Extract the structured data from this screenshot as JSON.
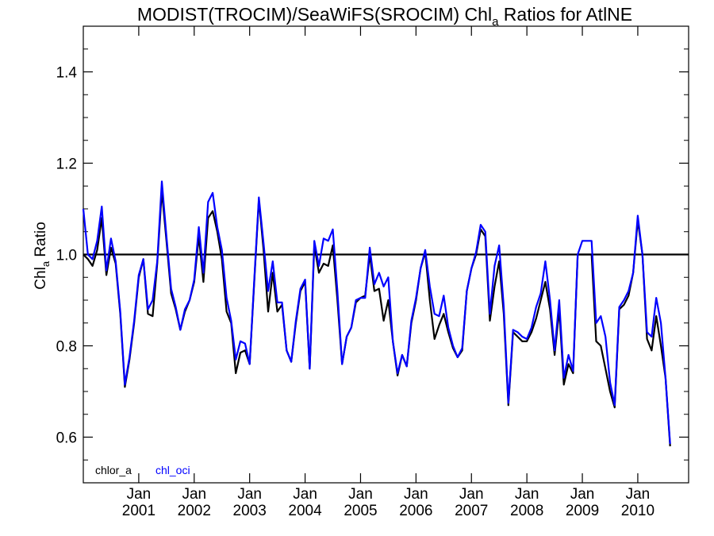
{
  "chart_data": {
    "type": "line",
    "title": "MODIST(TROCIM)/SeaWiFS(SROCIM)  Chl_a Ratios for AtlNE",
    "title_parts": {
      "prefix": "MODIST(TROCIM)/SeaWiFS(SROCIM)  Chl",
      "subscript": "a",
      "suffix": " Ratios for AtlNE"
    },
    "ylabel": "Chl_a Ratio",
    "ylabel_parts": {
      "prefix": "Chl",
      "subscript": "a",
      "suffix": " Ratio"
    },
    "xlabel": "",
    "ylim": [
      0.5,
      1.5
    ],
    "xlim": [
      "2000-01",
      "2010-12"
    ],
    "y_ticks": [
      {
        "value": 0.6,
        "label": "0.6"
      },
      {
        "value": 0.8,
        "label": "0.8"
      },
      {
        "value": 1.0,
        "label": "1.0"
      },
      {
        "value": 1.2,
        "label": "1.2"
      },
      {
        "value": 1.4,
        "label": "1.4"
      }
    ],
    "x_ticks": [
      {
        "x": "2001-01",
        "label1": "Jan",
        "label2": "2001"
      },
      {
        "x": "2002-01",
        "label1": "Jan",
        "label2": "2002"
      },
      {
        "x": "2003-01",
        "label1": "Jan",
        "label2": "2003"
      },
      {
        "x": "2004-01",
        "label1": "Jan",
        "label2": "2004"
      },
      {
        "x": "2005-01",
        "label1": "Jan",
        "label2": "2005"
      },
      {
        "x": "2006-01",
        "label1": "Jan",
        "label2": "2006"
      },
      {
        "x": "2007-01",
        "label1": "Jan",
        "label2": "2007"
      },
      {
        "x": "2008-01",
        "label1": "Jan",
        "label2": "2008"
      },
      {
        "x": "2009-01",
        "label1": "Jan",
        "label2": "2009"
      },
      {
        "x": "2010-01",
        "label1": "Jan",
        "label2": "2010"
      }
    ],
    "reference_line": {
      "y": 1.0,
      "color": "#000000"
    },
    "legend_placement": "bottom-left",
    "grid": false,
    "series": [
      {
        "name": "chlor_a",
        "color": "#000000",
        "points": [
          [
            "2000-01",
            1.0
          ],
          [
            "2000-02",
            0.99
          ],
          [
            "2000-03",
            0.975
          ],
          [
            "2000-04",
            1.01
          ],
          [
            "2000-05",
            1.08
          ],
          [
            "2000-06",
            0.955
          ],
          [
            "2000-07",
            1.015
          ],
          [
            "2000-08",
            0.98
          ],
          [
            "2000-09",
            0.87
          ],
          [
            "2000-10",
            0.71
          ],
          [
            "2000-11",
            0.77
          ],
          [
            "2000-12",
            0.85
          ],
          [
            "2001-01",
            0.95
          ],
          [
            "2001-02",
            0.99
          ],
          [
            "2001-03",
            0.87
          ],
          [
            "2001-04",
            0.865
          ],
          [
            "2001-05",
            0.98
          ],
          [
            "2001-06",
            1.14
          ],
          [
            "2001-07",
            1.03
          ],
          [
            "2001-08",
            0.915
          ],
          [
            "2001-09",
            0.88
          ],
          [
            "2001-10",
            0.835
          ],
          [
            "2001-11",
            0.875
          ],
          [
            "2001-12",
            0.9
          ],
          [
            "2002-01",
            0.94
          ],
          [
            "2002-02",
            1.04
          ],
          [
            "2002-03",
            0.94
          ],
          [
            "2002-04",
            1.08
          ],
          [
            "2002-05",
            1.095
          ],
          [
            "2002-06",
            1.05
          ],
          [
            "2002-07",
            0.99
          ],
          [
            "2002-08",
            0.875
          ],
          [
            "2002-09",
            0.85
          ],
          [
            "2002-10",
            0.74
          ],
          [
            "2002-11",
            0.785
          ],
          [
            "2002-12",
            0.79
          ],
          [
            "2003-01",
            0.76
          ],
          [
            "2003-02",
            0.94
          ],
          [
            "2003-03",
            1.12
          ],
          [
            "2003-04",
            1.01
          ],
          [
            "2003-05",
            0.875
          ],
          [
            "2003-06",
            0.96
          ],
          [
            "2003-07",
            0.875
          ],
          [
            "2003-08",
            0.89
          ],
          [
            "2003-09",
            0.79
          ],
          [
            "2003-10",
            0.765
          ],
          [
            "2003-11",
            0.85
          ],
          [
            "2003-12",
            0.92
          ],
          [
            "2004-01",
            0.94
          ],
          [
            "2004-02",
            0.75
          ],
          [
            "2004-03",
            1.02
          ],
          [
            "2004-04",
            0.96
          ],
          [
            "2004-05",
            0.98
          ],
          [
            "2004-06",
            0.975
          ],
          [
            "2004-07",
            1.02
          ],
          [
            "2004-08",
            0.9
          ],
          [
            "2004-09",
            0.76
          ],
          [
            "2004-10",
            0.82
          ],
          [
            "2004-11",
            0.84
          ],
          [
            "2004-12",
            0.895
          ],
          [
            "2005-01",
            0.905
          ],
          [
            "2005-02",
            0.91
          ],
          [
            "2005-03",
            1.0
          ],
          [
            "2005-04",
            0.92
          ],
          [
            "2005-05",
            0.925
          ],
          [
            "2005-06",
            0.855
          ],
          [
            "2005-07",
            0.9
          ],
          [
            "2005-08",
            0.81
          ],
          [
            "2005-09",
            0.735
          ],
          [
            "2005-10",
            0.78
          ],
          [
            "2005-11",
            0.755
          ],
          [
            "2005-12",
            0.85
          ],
          [
            "2006-01",
            0.9
          ],
          [
            "2006-02",
            0.97
          ],
          [
            "2006-03",
            1.005
          ],
          [
            "2006-04",
            0.9
          ],
          [
            "2006-05",
            0.815
          ],
          [
            "2006-06",
            0.845
          ],
          [
            "2006-07",
            0.87
          ],
          [
            "2006-08",
            0.83
          ],
          [
            "2006-09",
            0.795
          ],
          [
            "2006-10",
            0.775
          ],
          [
            "2006-11",
            0.79
          ],
          [
            "2006-12",
            0.92
          ],
          [
            "2007-01",
            0.97
          ],
          [
            "2007-02",
            1.0
          ],
          [
            "2007-03",
            1.055
          ],
          [
            "2007-04",
            1.04
          ],
          [
            "2007-05",
            0.855
          ],
          [
            "2007-06",
            0.93
          ],
          [
            "2007-07",
            0.985
          ],
          [
            "2007-08",
            0.87
          ],
          [
            "2007-09",
            0.67
          ],
          [
            "2007-10",
            0.83
          ],
          [
            "2007-11",
            0.82
          ],
          [
            "2007-12",
            0.81
          ],
          [
            "2008-01",
            0.81
          ],
          [
            "2008-02",
            0.83
          ],
          [
            "2008-03",
            0.86
          ],
          [
            "2008-04",
            0.9
          ],
          [
            "2008-05",
            0.94
          ],
          [
            "2008-06",
            0.88
          ],
          [
            "2008-07",
            0.78
          ],
          [
            "2008-08",
            0.88
          ],
          [
            "2008-09",
            0.715
          ],
          [
            "2008-10",
            0.76
          ],
          [
            "2008-11",
            0.74
          ],
          [
            "2008-12",
            1.0
          ],
          [
            "2009-01",
            1.0
          ],
          [
            "2009-02",
            1.0
          ],
          [
            "2009-03",
            1.0
          ],
          [
            "2009-04",
            0.81
          ],
          [
            "2009-05",
            0.8
          ],
          [
            "2009-06",
            0.75
          ],
          [
            "2009-07",
            0.7
          ],
          [
            "2009-08",
            0.665
          ],
          [
            "2009-09",
            0.88
          ],
          [
            "2009-10",
            0.89
          ],
          [
            "2009-11",
            0.91
          ],
          [
            "2009-12",
            0.96
          ],
          [
            "2010-01",
            1.075
          ],
          [
            "2010-02",
            1.0
          ],
          [
            "2010-03",
            0.815
          ],
          [
            "2010-04",
            0.79
          ],
          [
            "2010-05",
            0.865
          ],
          [
            "2010-06",
            0.8
          ],
          [
            "2010-07",
            0.73
          ],
          [
            "2010-08",
            0.58
          ]
        ]
      },
      {
        "name": "chl_oci",
        "color": "#0000ff",
        "points": [
          [
            "2000-01",
            1.1
          ],
          [
            "2000-02",
            1.0
          ],
          [
            "2000-03",
            0.99
          ],
          [
            "2000-04",
            1.03
          ],
          [
            "2000-05",
            1.105
          ],
          [
            "2000-06",
            0.965
          ],
          [
            "2000-07",
            1.035
          ],
          [
            "2000-08",
            0.985
          ],
          [
            "2000-09",
            0.875
          ],
          [
            "2000-10",
            0.715
          ],
          [
            "2000-11",
            0.775
          ],
          [
            "2000-12",
            0.855
          ],
          [
            "2001-01",
            0.955
          ],
          [
            "2001-02",
            0.99
          ],
          [
            "2001-03",
            0.88
          ],
          [
            "2001-04",
            0.9
          ],
          [
            "2001-05",
            0.985
          ],
          [
            "2001-06",
            1.16
          ],
          [
            "2001-07",
            1.04
          ],
          [
            "2001-08",
            0.925
          ],
          [
            "2001-09",
            0.885
          ],
          [
            "2001-10",
            0.835
          ],
          [
            "2001-11",
            0.88
          ],
          [
            "2001-12",
            0.9
          ],
          [
            "2002-01",
            0.945
          ],
          [
            "2002-02",
            1.06
          ],
          [
            "2002-03",
            0.96
          ],
          [
            "2002-04",
            1.115
          ],
          [
            "2002-05",
            1.135
          ],
          [
            "2002-06",
            1.06
          ],
          [
            "2002-07",
            1.01
          ],
          [
            "2002-08",
            0.905
          ],
          [
            "2002-09",
            0.855
          ],
          [
            "2002-10",
            0.77
          ],
          [
            "2002-11",
            0.81
          ],
          [
            "2002-12",
            0.805
          ],
          [
            "2003-01",
            0.76
          ],
          [
            "2003-02",
            0.945
          ],
          [
            "2003-03",
            1.125
          ],
          [
            "2003-04",
            1.025
          ],
          [
            "2003-05",
            0.92
          ],
          [
            "2003-06",
            0.985
          ],
          [
            "2003-07",
            0.895
          ],
          [
            "2003-08",
            0.895
          ],
          [
            "2003-09",
            0.79
          ],
          [
            "2003-10",
            0.765
          ],
          [
            "2003-11",
            0.855
          ],
          [
            "2003-12",
            0.925
          ],
          [
            "2004-01",
            0.945
          ],
          [
            "2004-02",
            0.75
          ],
          [
            "2004-03",
            1.03
          ],
          [
            "2004-04",
            0.975
          ],
          [
            "2004-05",
            1.035
          ],
          [
            "2004-06",
            1.03
          ],
          [
            "2004-07",
            1.055
          ],
          [
            "2004-08",
            0.92
          ],
          [
            "2004-09",
            0.76
          ],
          [
            "2004-10",
            0.82
          ],
          [
            "2004-11",
            0.84
          ],
          [
            "2004-12",
            0.9
          ],
          [
            "2005-01",
            0.905
          ],
          [
            "2005-02",
            0.905
          ],
          [
            "2005-03",
            1.015
          ],
          [
            "2005-04",
            0.935
          ],
          [
            "2005-05",
            0.96
          ],
          [
            "2005-06",
            0.93
          ],
          [
            "2005-07",
            0.95
          ],
          [
            "2005-08",
            0.81
          ],
          [
            "2005-09",
            0.74
          ],
          [
            "2005-10",
            0.78
          ],
          [
            "2005-11",
            0.755
          ],
          [
            "2005-12",
            0.855
          ],
          [
            "2006-01",
            0.905
          ],
          [
            "2006-02",
            0.97
          ],
          [
            "2006-03",
            1.01
          ],
          [
            "2006-04",
            0.93
          ],
          [
            "2006-05",
            0.87
          ],
          [
            "2006-06",
            0.865
          ],
          [
            "2006-07",
            0.91
          ],
          [
            "2006-08",
            0.84
          ],
          [
            "2006-09",
            0.8
          ],
          [
            "2006-10",
            0.775
          ],
          [
            "2006-11",
            0.795
          ],
          [
            "2006-12",
            0.92
          ],
          [
            "2007-01",
            0.97
          ],
          [
            "2007-02",
            1.005
          ],
          [
            "2007-03",
            1.065
          ],
          [
            "2007-04",
            1.05
          ],
          [
            "2007-05",
            0.87
          ],
          [
            "2007-06",
            0.975
          ],
          [
            "2007-07",
            1.02
          ],
          [
            "2007-08",
            0.885
          ],
          [
            "2007-09",
            0.675
          ],
          [
            "2007-10",
            0.835
          ],
          [
            "2007-11",
            0.83
          ],
          [
            "2007-12",
            0.82
          ],
          [
            "2008-01",
            0.815
          ],
          [
            "2008-02",
            0.84
          ],
          [
            "2008-03",
            0.885
          ],
          [
            "2008-04",
            0.915
          ],
          [
            "2008-05",
            0.985
          ],
          [
            "2008-06",
            0.9
          ],
          [
            "2008-07",
            0.79
          ],
          [
            "2008-08",
            0.9
          ],
          [
            "2008-09",
            0.73
          ],
          [
            "2008-10",
            0.78
          ],
          [
            "2008-11",
            0.745
          ],
          [
            "2008-12",
            1.0
          ],
          [
            "2009-01",
            1.03
          ],
          [
            "2009-02",
            1.03
          ],
          [
            "2009-03",
            1.03
          ],
          [
            "2009-04",
            0.85
          ],
          [
            "2009-05",
            0.865
          ],
          [
            "2009-06",
            0.82
          ],
          [
            "2009-07",
            0.72
          ],
          [
            "2009-08",
            0.67
          ],
          [
            "2009-09",
            0.885
          ],
          [
            "2009-10",
            0.9
          ],
          [
            "2009-11",
            0.92
          ],
          [
            "2009-12",
            0.96
          ],
          [
            "2010-01",
            1.085
          ],
          [
            "2010-02",
            1.0
          ],
          [
            "2010-03",
            0.83
          ],
          [
            "2010-04",
            0.82
          ],
          [
            "2010-05",
            0.905
          ],
          [
            "2010-06",
            0.85
          ],
          [
            "2010-07",
            0.73
          ],
          [
            "2010-08",
            0.585
          ]
        ]
      }
    ]
  }
}
